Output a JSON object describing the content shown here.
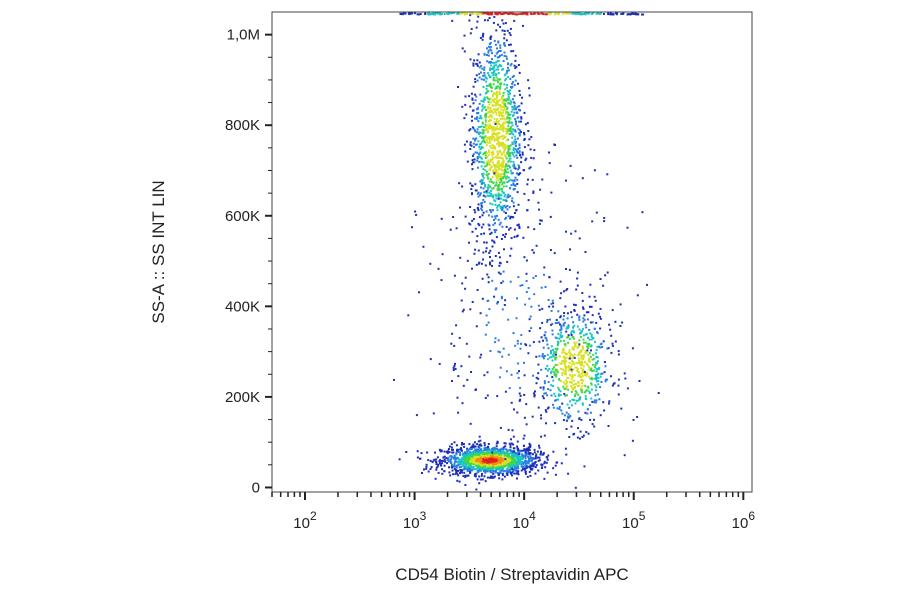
{
  "chart_data": {
    "type": "scatter",
    "title": "",
    "xlabel": "CD54 Biotin / Streptavidin APC",
    "ylabel": "SS-A :: SS INT LIN",
    "x_scale": "log",
    "xlim": [
      50,
      1200000
    ],
    "ylim": [
      -10000,
      1050000
    ],
    "x_ticks": [
      {
        "value": 100,
        "base": "10",
        "exp": "2"
      },
      {
        "value": 1000,
        "base": "10",
        "exp": "3"
      },
      {
        "value": 10000,
        "base": "10",
        "exp": "4"
      },
      {
        "value": 100000,
        "base": "10",
        "exp": "5"
      },
      {
        "value": 1000000,
        "base": "10",
        "exp": "6"
      }
    ],
    "y_ticks": [
      {
        "value": 0,
        "label": "0"
      },
      {
        "value": 200000,
        "label": "200K"
      },
      {
        "value": 400000,
        "label": "400K"
      },
      {
        "value": 600000,
        "label": "600K"
      },
      {
        "value": 800000,
        "label": "800K"
      },
      {
        "value": 1000000,
        "label": "1,0M"
      }
    ],
    "density_colormap": [
      "#1c2fb8",
      "#2a7de0",
      "#19c4c4",
      "#3ed64a",
      "#d8e020",
      "#f28a18",
      "#e0201a"
    ],
    "populations": [
      {
        "x_center": 4800,
        "y_center": 62000,
        "x_spread_log": 0.22,
        "y_spread": 16000,
        "count": 1500
      },
      {
        "x_center": 5500,
        "y_center": 780000,
        "x_spread_log": 0.12,
        "y_spread": 120000,
        "count": 1300
      },
      {
        "x_center": 28000,
        "y_center": 270000,
        "x_spread_log": 0.18,
        "y_spread": 65000,
        "count": 650
      },
      {
        "x_center": 9000,
        "y_center": 360000,
        "x_spread_log": 0.45,
        "y_spread": 180000,
        "count": 320
      }
    ]
  }
}
